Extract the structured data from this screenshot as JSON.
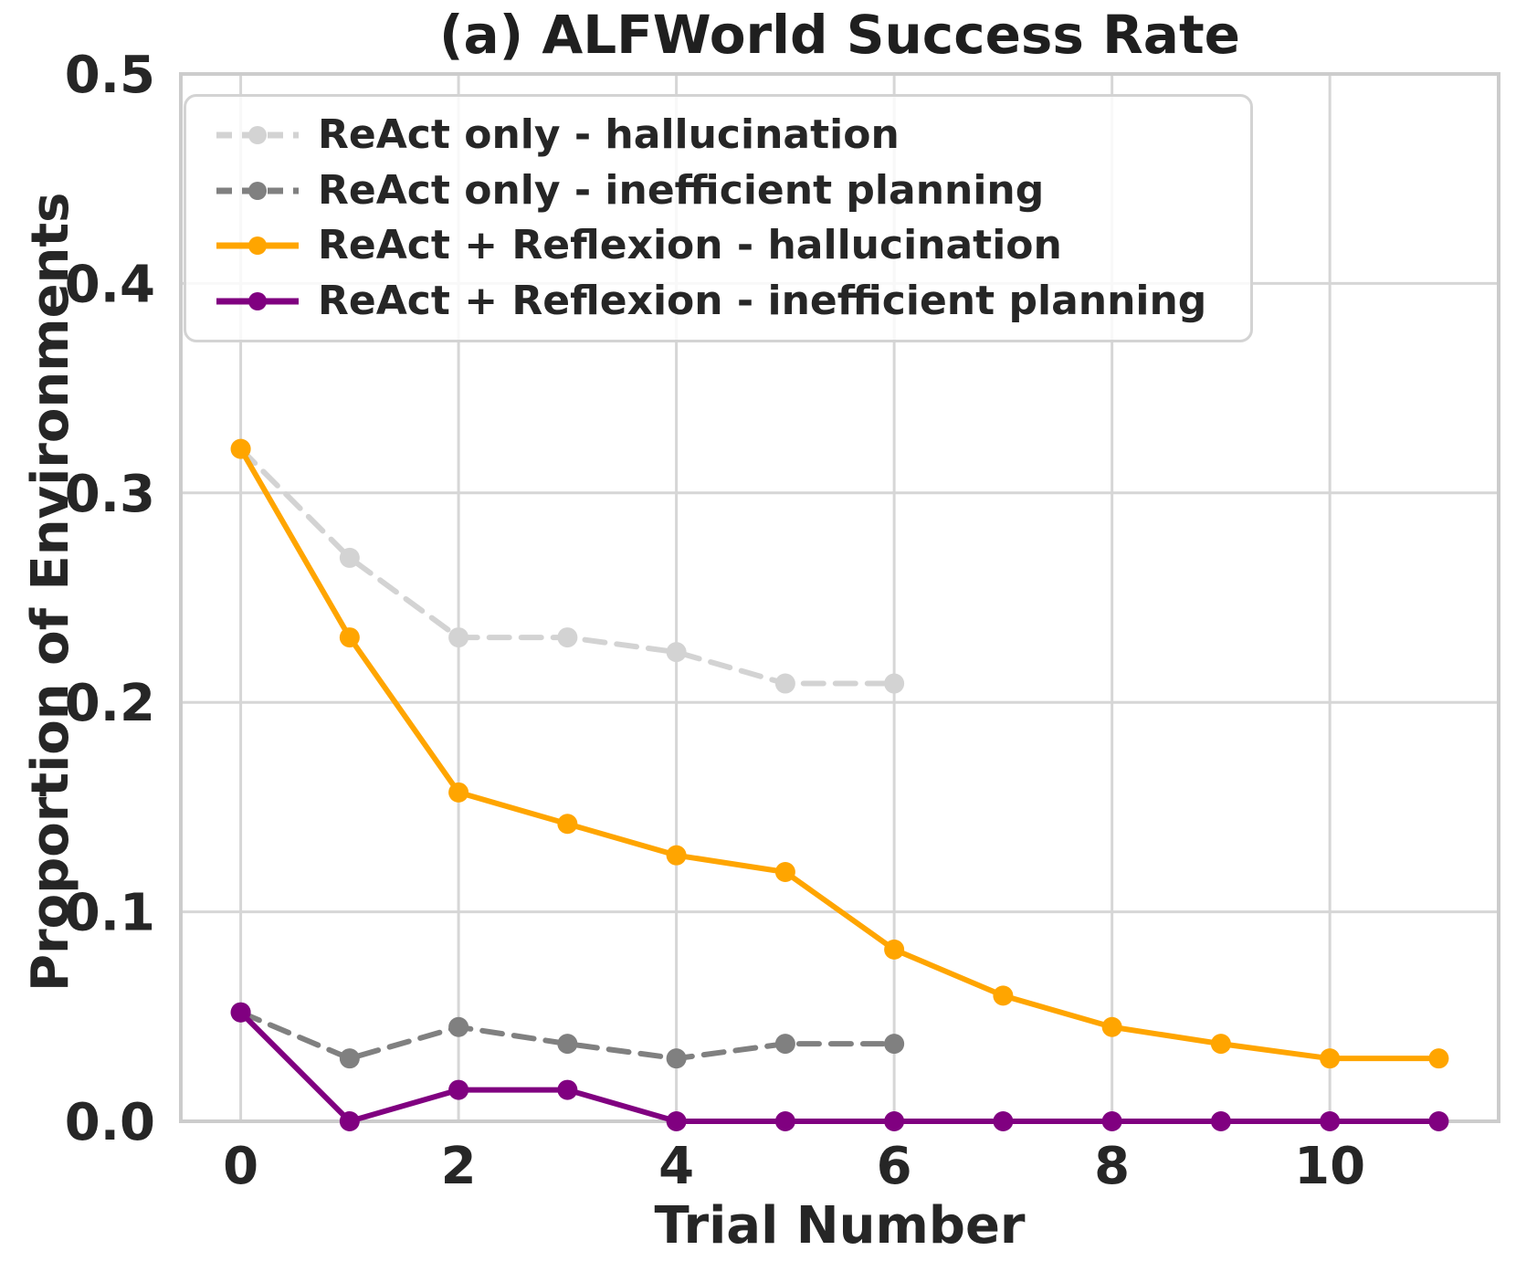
{
  "chart_data": {
    "type": "line",
    "title": "(a) ALFWorld Success Rate",
    "xlabel": "Trial Number",
    "ylabel": "Proportion of Environments",
    "xlim": [
      -0.55,
      11.55
    ],
    "ylim": [
      0,
      0.5
    ],
    "grid": true,
    "legend_position": "upper left",
    "xticks": {
      "values": [
        0,
        2,
        4,
        6,
        8,
        10
      ],
      "labels": [
        "0",
        "2",
        "4",
        "6",
        "8",
        "10"
      ]
    },
    "yticks": {
      "values": [
        0,
        0.1,
        0.2,
        0.3,
        0.4,
        0.5
      ],
      "labels": [
        "0.0",
        "0.1",
        "0.2",
        "0.3",
        "0.4",
        "0.5"
      ]
    },
    "series": [
      {
        "label": "ReAct only - hallucination",
        "color": "#d3d3d3",
        "line_style": "dashed",
        "x": [
          0,
          1,
          2,
          3,
          4,
          5,
          6
        ],
        "values": [
          0.321,
          0.269,
          0.231,
          0.231,
          0.224,
          0.209,
          0.209
        ]
      },
      {
        "label": "ReAct only - inefficient planning",
        "color": "#808080",
        "line_style": "dashed",
        "x": [
          0,
          1,
          2,
          3,
          4,
          5,
          6
        ],
        "values": [
          0.052,
          0.03,
          0.045,
          0.037,
          0.03,
          0.037,
          0.037
        ]
      },
      {
        "label": "ReAct + Reflexion - hallucination",
        "color": "#ffa500",
        "line_style": "solid",
        "x": [
          0,
          1,
          2,
          3,
          4,
          5,
          6,
          7,
          8,
          9,
          10,
          11
        ],
        "values": [
          0.321,
          0.231,
          0.157,
          0.142,
          0.127,
          0.119,
          0.082,
          0.06,
          0.045,
          0.037,
          0.03,
          0.03
        ]
      },
      {
        "label": "ReAct + Reflexion - inefficient planning",
        "color": "#800080",
        "line_style": "solid",
        "x": [
          0,
          1,
          2,
          3,
          4,
          5,
          6,
          7,
          8,
          9,
          10,
          11
        ],
        "values": [
          0.052,
          0.0,
          0.015,
          0.015,
          0.0,
          0.0,
          0.0,
          0.0,
          0.0,
          0.0,
          0.0,
          0.0
        ]
      }
    ],
    "style": {
      "grid_color": "#d6d6d6",
      "spine_color": "#cccccc",
      "text_color": "#262626",
      "background": "#ffffff"
    }
  }
}
